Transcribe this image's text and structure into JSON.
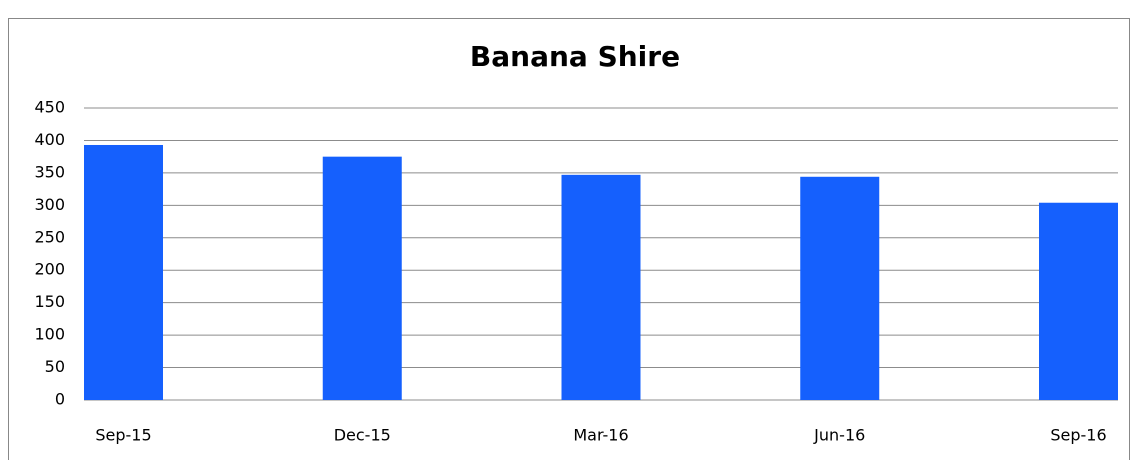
{
  "chart_data": {
    "type": "bar",
    "title": "Banana Shire",
    "categories": [
      "Sep-15",
      "Dec-15",
      "Mar-16",
      "Jun-16",
      "Sep-16"
    ],
    "values": [
      393,
      375,
      347,
      344,
      304
    ],
    "color": "#1560fd",
    "ylim": [
      0,
      450
    ],
    "yticks": [
      0,
      50,
      100,
      150,
      200,
      250,
      300,
      350,
      400,
      450
    ],
    "grid": true
  }
}
